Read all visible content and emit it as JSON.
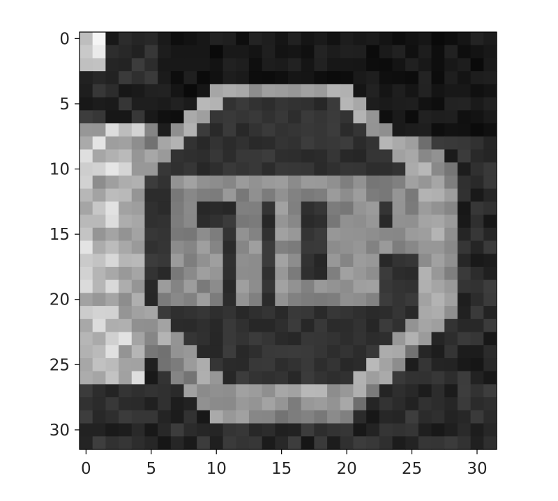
{
  "image": {
    "subject": "stop-sign",
    "sign_text": "STOP",
    "resolution": [
      32,
      32
    ],
    "colormap": "gray"
  },
  "axes": {
    "x_range": [
      -0.5,
      31.5
    ],
    "y_range": [
      -0.5,
      31.5
    ],
    "y_inverted": true,
    "x_ticks": [
      "0",
      "5",
      "10",
      "15",
      "20",
      "25",
      "30"
    ],
    "y_ticks": [
      "0",
      "5",
      "10",
      "15",
      "20",
      "25",
      "30"
    ],
    "grid": false
  }
}
